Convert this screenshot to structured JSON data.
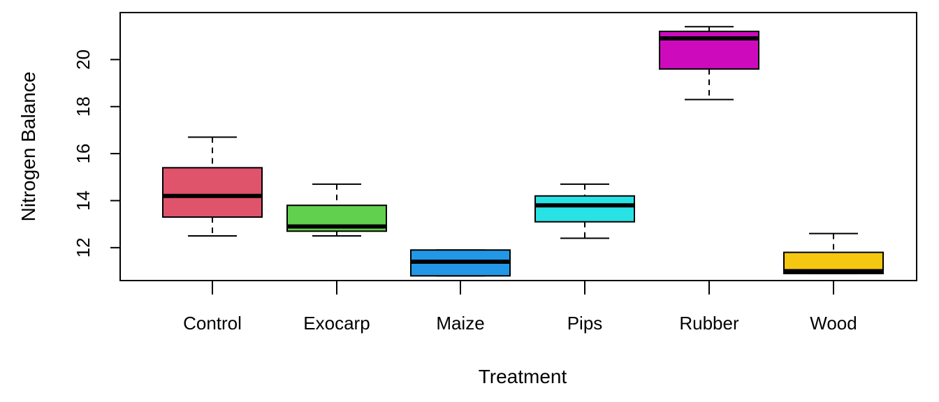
{
  "chart_data": {
    "type": "boxplot",
    "title": "",
    "xlabel": "Treatment",
    "ylabel": "Nitrogen Balance",
    "ylim": [
      10.6,
      22.0
    ],
    "y_ticks": [
      12,
      14,
      16,
      18,
      20
    ],
    "categories": [
      "Control",
      "Exocarp",
      "Maize",
      "Pips",
      "Rubber",
      "Wood"
    ],
    "colors": [
      "#DF536B",
      "#61D04F",
      "#2297E6",
      "#28E2E5",
      "#CD0BBC",
      "#F5C710"
    ],
    "boxes": [
      {
        "name": "Control",
        "whisker_low": 12.5,
        "q1": 13.3,
        "median": 14.2,
        "q3": 15.4,
        "whisker_high": 16.7
      },
      {
        "name": "Exocarp",
        "whisker_low": 12.5,
        "q1": 12.7,
        "median": 12.9,
        "q3": 13.8,
        "whisker_high": 14.7
      },
      {
        "name": "Maize",
        "whisker_low": 10.8,
        "q1": 10.8,
        "median": 11.4,
        "q3": 11.9,
        "whisker_high": 11.9
      },
      {
        "name": "Pips",
        "whisker_low": 12.4,
        "q1": 13.1,
        "median": 13.8,
        "q3": 14.2,
        "whisker_high": 14.7
      },
      {
        "name": "Rubber",
        "whisker_low": 18.3,
        "q1": 19.6,
        "median": 20.9,
        "q3": 21.2,
        "whisker_high": 21.4
      },
      {
        "name": "Wood",
        "whisker_low": 10.9,
        "q1": 10.9,
        "median": 11.0,
        "q3": 11.8,
        "whisker_high": 12.6
      }
    ]
  }
}
